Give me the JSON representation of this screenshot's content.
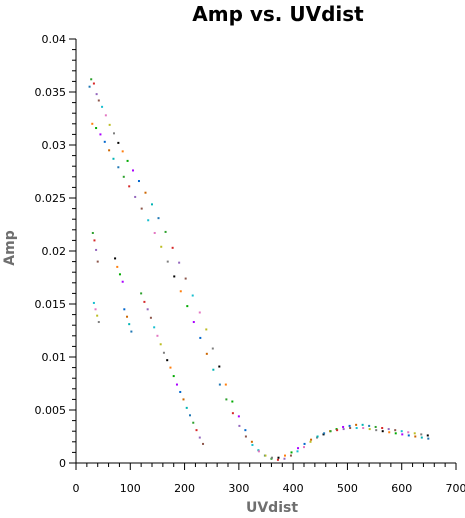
{
  "chart_data": {
    "type": "scatter",
    "title": "Amp vs. UVdist",
    "xlabel": "UVdist",
    "ylabel": "Amp",
    "xlim": [
      0,
      700
    ],
    "ylim": [
      0,
      0.04
    ],
    "x_ticks": [
      0,
      100,
      200,
      300,
      400,
      500,
      600,
      700
    ],
    "x_tick_labels": [
      "0",
      "100",
      "200",
      "300",
      "400",
      "500",
      "600",
      "700"
    ],
    "y_ticks": [
      0,
      0.005,
      0.01,
      0.015,
      0.02,
      0.025,
      0.03,
      0.035,
      0.04
    ],
    "y_tick_labels": [
      "0",
      "0.005",
      "0.01",
      "0.015",
      "0.02",
      "0.025",
      "0.03",
      "0.035",
      "0.04"
    ],
    "grid": false,
    "colors": [
      "#1f77b4",
      "#2ca02c",
      "#d62728",
      "#9467bd",
      "#8c564b",
      "#17becf",
      "#e377c2",
      "#bcbd22",
      "#7f7f7f",
      "#000000",
      "#ff7f0e",
      "#00aa00",
      "#aa00ff",
      "#0066cc",
      "#cc6600",
      "#00b3b3"
    ],
    "series": [
      {
        "points": [
          [
            25,
            0.0355
          ],
          [
            28,
            0.0362
          ],
          [
            33,
            0.0358
          ],
          [
            38,
            0.0348
          ],
          [
            42,
            0.0342
          ],
          [
            48,
            0.0336
          ],
          [
            55,
            0.0328
          ],
          [
            62,
            0.0319
          ],
          [
            70,
            0.0311
          ],
          [
            78,
            0.0302
          ],
          [
            86,
            0.0294
          ],
          [
            95,
            0.0285
          ],
          [
            105,
            0.0276
          ],
          [
            116,
            0.0266
          ],
          [
            128,
            0.0255
          ],
          [
            140,
            0.0244
          ],
          [
            152,
            0.0231
          ],
          [
            165,
            0.0218
          ],
          [
            178,
            0.0203
          ],
          [
            190,
            0.0189
          ],
          [
            202,
            0.0174
          ],
          [
            215,
            0.0158
          ],
          [
            228,
            0.0142
          ],
          [
            240,
            0.0126
          ],
          [
            252,
            0.0108
          ],
          [
            264,
            0.0091
          ],
          [
            276,
            0.0074
          ],
          [
            288,
            0.0058
          ],
          [
            300,
            0.0044
          ],
          [
            312,
            0.0031
          ],
          [
            324,
            0.002
          ],
          [
            336,
            0.0012
          ],
          [
            348,
            0.0007
          ],
          [
            360,
            0.0004
          ],
          [
            372,
            0.0003
          ],
          [
            384,
            0.0004
          ],
          [
            396,
            0.0007
          ],
          [
            408,
            0.0011
          ],
          [
            420,
            0.0015
          ],
          [
            432,
            0.002
          ],
          [
            444,
            0.0024
          ],
          [
            456,
            0.0027
          ],
          [
            468,
            0.003
          ],
          [
            480,
            0.0032
          ],
          [
            492,
            0.0034
          ],
          [
            504,
            0.0035
          ],
          [
            516,
            0.0036
          ],
          [
            528,
            0.0036
          ],
          [
            540,
            0.0035
          ],
          [
            552,
            0.0034
          ],
          [
            564,
            0.0033
          ],
          [
            576,
            0.0032
          ],
          [
            588,
            0.0031
          ],
          [
            600,
            0.003
          ],
          [
            612,
            0.0029
          ],
          [
            624,
            0.0028
          ],
          [
            636,
            0.0027
          ],
          [
            648,
            0.0026
          ]
        ]
      },
      {
        "points": [
          [
            30,
            0.032
          ],
          [
            37,
            0.0316
          ],
          [
            45,
            0.031
          ],
          [
            53,
            0.0303
          ],
          [
            61,
            0.0295
          ],
          [
            69,
            0.0287
          ],
          [
            78,
            0.0279
          ],
          [
            88,
            0.027
          ],
          [
            98,
            0.0261
          ],
          [
            109,
            0.0251
          ],
          [
            121,
            0.024
          ],
          [
            133,
            0.0229
          ],
          [
            145,
            0.0217
          ],
          [
            157,
            0.0204
          ],
          [
            169,
            0.019
          ],
          [
            181,
            0.0176
          ],
          [
            193,
            0.0162
          ],
          [
            205,
            0.0148
          ],
          [
            217,
            0.0133
          ],
          [
            229,
            0.0118
          ],
          [
            241,
            0.0103
          ],
          [
            253,
            0.0088
          ],
          [
            265,
            0.0074
          ],
          [
            277,
            0.006
          ],
          [
            289,
            0.0047
          ],
          [
            301,
            0.0035
          ],
          [
            313,
            0.0025
          ],
          [
            325,
            0.0017
          ],
          [
            337,
            0.0011
          ],
          [
            349,
            0.0007
          ],
          [
            361,
            0.0005
          ],
          [
            373,
            0.0005
          ],
          [
            385,
            0.0007
          ],
          [
            397,
            0.001
          ],
          [
            409,
            0.0014
          ],
          [
            421,
            0.0018
          ],
          [
            433,
            0.0022
          ],
          [
            445,
            0.0025
          ],
          [
            457,
            0.0028
          ],
          [
            469,
            0.003
          ],
          [
            481,
            0.0031
          ],
          [
            493,
            0.0032
          ],
          [
            505,
            0.0033
          ],
          [
            517,
            0.0033
          ],
          [
            529,
            0.0033
          ],
          [
            541,
            0.0032
          ],
          [
            553,
            0.0031
          ],
          [
            565,
            0.003
          ],
          [
            577,
            0.0029
          ],
          [
            589,
            0.0028
          ],
          [
            601,
            0.0027
          ],
          [
            613,
            0.0026
          ],
          [
            625,
            0.0025
          ],
          [
            637,
            0.0024
          ],
          [
            649,
            0.0023
          ]
        ]
      },
      {
        "points": [
          [
            31,
            0.0217
          ],
          [
            34,
            0.021
          ],
          [
            37,
            0.0201
          ],
          [
            40,
            0.019
          ],
          [
            33,
            0.0151
          ],
          [
            36,
            0.0145
          ],
          [
            39,
            0.0139
          ],
          [
            42,
            0.0133
          ],
          [
            72,
            0.0193
          ],
          [
            76,
            0.0185
          ],
          [
            81,
            0.0178
          ],
          [
            86,
            0.0171
          ],
          [
            89,
            0.0145
          ],
          [
            94,
            0.0138
          ],
          [
            98,
            0.0131
          ],
          [
            102,
            0.0124
          ],
          [
            120,
            0.016
          ],
          [
            126,
            0.0152
          ],
          [
            132,
            0.0145
          ],
          [
            138,
            0.0137
          ],
          [
            144,
            0.0128
          ],
          [
            150,
            0.012
          ],
          [
            156,
            0.0112
          ],
          [
            162,
            0.0104
          ],
          [
            168,
            0.0097
          ],
          [
            174,
            0.009
          ],
          [
            180,
            0.0082
          ],
          [
            186,
            0.0074
          ],
          [
            192,
            0.0067
          ],
          [
            198,
            0.006
          ],
          [
            204,
            0.0052
          ],
          [
            210,
            0.0045
          ],
          [
            216,
            0.0038
          ],
          [
            222,
            0.0031
          ],
          [
            228,
            0.0024
          ],
          [
            234,
            0.0018
          ]
        ]
      }
    ]
  }
}
